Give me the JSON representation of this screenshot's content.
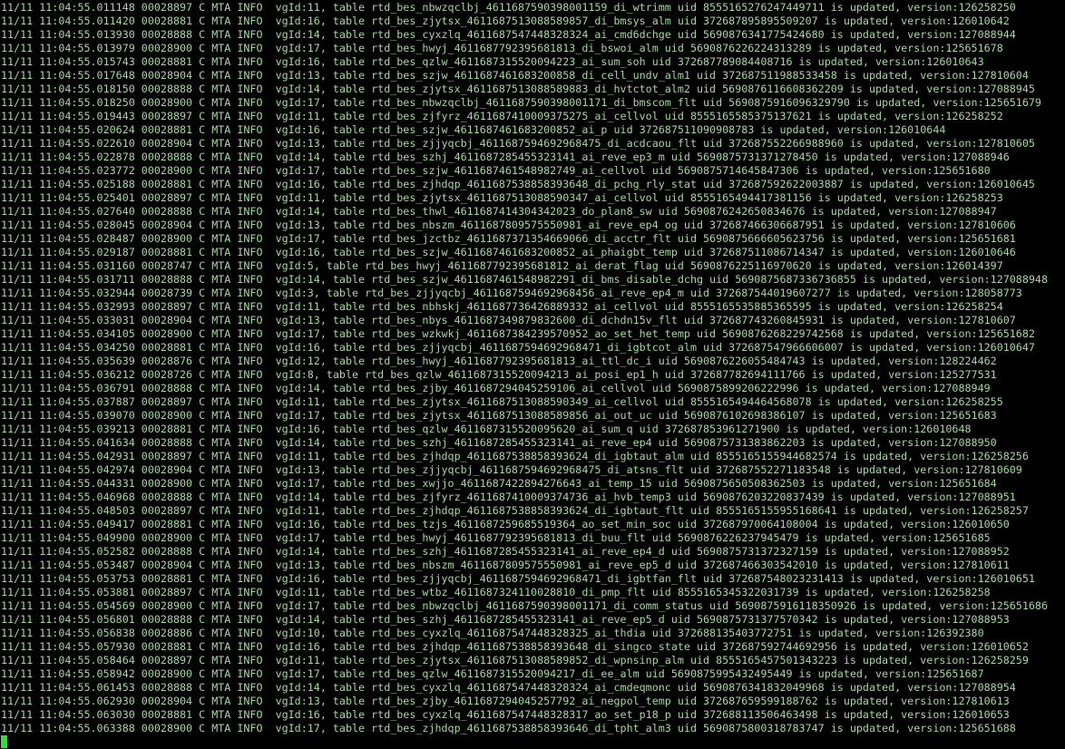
{
  "terminal": {
    "colors": {
      "background": "#000000",
      "foreground": "#a6d8a0",
      "cursor": "#2fe02f"
    },
    "cursor_visible": true,
    "lines": [
      "11/11 11:04:55.011148 00028897 C MTA INFO  vgId:11, table rtd_bes_nbwzqclbj_4611687590398001159_di_wtrimm uid 8555165276247449711 is updated, version:126258250",
      "11/11 11:04:55.011420 00028881 C MTA INFO  vgId:16, table rtd_bes_zjytsx_4611687513088589857_di_bmsys_alm uid 372687895895509207 is updated, version:126010642",
      "11/11 11:04:55.013930 00028888 C MTA INFO  vgId:14, table rtd_bes_cyxzlq_4611687547448328324_ai_cmd6dchge uid 5690876341775424680 is updated, version:127088944",
      "11/11 11:04:55.013979 00028900 C MTA INFO  vgId:17, table rtd_bes_hwyj_4611687792395681813_di_bswoi_alm uid 5690876226224313289 is updated, version:125651678",
      "11/11 11:04:55.015743 00028881 C MTA INFO  vgId:16, table rtd_bes_qzlw_4611687315520094223_ai_sum_soh uid 372687789084408716 is updated, version:126010643",
      "11/11 11:04:55.017648 00028904 C MTA INFO  vgId:13, table rtd_bes_szjw_4611687461683200858_di_cell_undv_alm1 uid 372687511988533458 is updated, version:127810604",
      "11/11 11:04:55.018150 00028888 C MTA INFO  vgId:14, table rtd_bes_zjytsx_4611687513088589883_di_hvtctot_alm2 uid 5690876116608362209 is updated, version:127088945",
      "11/11 11:04:55.018250 00028900 C MTA INFO  vgId:17, table rtd_bes_nbwzqclbj_4611687590398001171_di_bmscom_flt uid 5690875916096329790 is updated, version:125651679",
      "11/11 11:04:55.019443 00028897 C MTA INFO  vgId:11, table rtd_bes_zjfyrz_4611687410009375275_ai_cellvol uid 8555165585375137621 is updated, version:126258252",
      "11/11 11:04:55.020624 00028881 C MTA INFO  vgId:16, table rtd_bes_szjw_4611687461683200852_ai_p uid 372687511090908783 is updated, version:126010644",
      "11/11 11:04:55.022610 00028904 C MTA INFO  vgId:13, table rtd_bes_zjjyqcbj_4611687594692968475_di_acdcaou_flt uid 372687552266988960 is updated, version:127810605",
      "11/11 11:04:55.022878 00028888 C MTA INFO  vgId:14, table rtd_bes_szhj_4611687285455323141_ai_reve_ep3_m uid 5690875731371278450 is updated, version:127088946",
      "11/11 11:04:55.023772 00028900 C MTA INFO  vgId:17, table rtd_bes_szjw_4611687461548982749_ai_cellvol uid 5690875714645847306 is updated, version:125651680",
      "11/11 11:04:55.025188 00028881 C MTA INFO  vgId:16, table rtd_bes_zjhdqp_4611687538858393648_di_pchg_rly_stat uid 372687592622003887 is updated, version:126010645",
      "11/11 11:04:55.025401 00028897 C MTA INFO  vgId:11, table rtd_bes_zjytsx_4611687513088590347_ai_cellvol uid 8555165494417381156 is updated, version:126258253",
      "11/11 11:04:55.027640 00028888 C MTA INFO  vgId:14, table rtd_bes_thwl_4611687414304342023_do_plan8_sw uid 5690876242650834676 is updated, version:127088947",
      "11/11 11:04:55.028045 00028904 C MTA INFO  vgId:13, table rtd_bes_nbszm_4611687809575550981_ai_reve_ep4_og uid 372687466306687951 is updated, version:127810606",
      "11/11 11:04:55.028487 00028900 C MTA INFO  vgId:17, table rtd_bes_jzctbz_4611687371354669066_di_acctr_flt uid 5690875666605623756 is updated, version:125651681",
      "11/11 11:04:55.029187 00028881 C MTA INFO  vgId:16, table rtd_bes_szjw_4611687461683200852_ai_phaigbt_temp uid 372687511086714347 is updated, version:126010646",
      "11/11 11:04:55.031160 00028747 C MTA INFO  vgId:5, table rtd_bes_hwyj_4611687792395681812_ai_derat_flag uid 5690876225116970620 is updated, version:126014397",
      "11/11 11:04:55.031711 00028888 C MTA INFO  vgId:14, table rtd_bes_szjw_4611687461548982291_di_bms_disable_dchg uid 5690875687336736855 is updated, version:127088948",
      "11/11 11:04:55.032944 00028739 C MTA INFO  vgId:3, table rtd_bes_zjjyqcbj_4611687594692968456_ai_reve_ep4_m uid 372687544019607277 is updated, version:128058773",
      "11/11 11:04:55.032993 00028897 C MTA INFO  vgId:11, table rtd_bes_nbhskj_4611687736426889332_ai_cellvol uid 8555165535885365595 is updated, version:126258254",
      "11/11 11:04:55.033031 00028904 C MTA INFO  vgId:13, table rtd_bes_nbys_4611687349879832600_di_dchdn15v_flt uid 372687743260845931 is updated, version:127810607",
      "11/11 11:04:55.034105 00028900 C MTA INFO  vgId:17, table rtd_bes_wzkwkj_4611687384239570952_ao_set_het_temp uid 5690876268229742568 is updated, version:125651682",
      "11/11 11:04:55.034250 00028881 C MTA INFO  vgId:16, table rtd_bes_zjjyqcbj_4611687594692968471_di_igbtcot_alm uid 372687547966606007 is updated, version:126010647",
      "11/11 11:04:55.035639 00028876 C MTA INFO  vgId:12, table rtd_bes_hwyj_4611687792395681813_ai_ttl_dc_i uid 5690876226055484743 is updated, version:128224462",
      "11/11 11:04:55.036212 00028726 C MTA INFO  vgId:8, table rtd_bes_qzlw_4611687315520094213_ai_posi_ep1_h uid 372687782694111766 is updated, version:125277531",
      "11/11 11:04:55.036791 00028888 C MTA INFO  vgId:14, table rtd_bes_zjby_4611687294045259106_ai_cellvol uid 5690875899206222996 is updated, version:127088949",
      "11/11 11:04:55.037887 00028897 C MTA INFO  vgId:11, table rtd_bes_zjytsx_4611687513088590349_ai_cellvol uid 8555165494464568078 is updated, version:126258255",
      "11/11 11:04:55.039070 00028900 C MTA INFO  vgId:17, table rtd_bes_zjytsx_4611687513088589856_ai_out_uc uid 5690876102698386107 is updated, version:125651683",
      "11/11 11:04:55.039213 00028881 C MTA INFO  vgId:16, table rtd_bes_qzlw_4611687315520095620_ai_sum_q uid 372687853961271900 is updated, version:126010648",
      "11/11 11:04:55.041634 00028888 C MTA INFO  vgId:14, table rtd_bes_szhj_4611687285455323141_ai_reve_ep4 uid 5690875731383862203 is updated, version:127088950",
      "11/11 11:04:55.042931 00028897 C MTA INFO  vgId:11, table rtd_bes_zjhdqp_4611687538858393624_di_igbtaut_alm uid 8555165155944682574 is updated, version:126258256",
      "11/11 11:04:55.042974 00028904 C MTA INFO  vgId:13, table rtd_bes_zjjyqcbj_4611687594692968475_di_atsns_flt uid 372687552271183548 is updated, version:127810609",
      "11/11 11:04:55.044331 00028900 C MTA INFO  vgId:17, table rtd_bes_xwjjo_4611687422894276643_ai_temp_15 uid 5690875650508362503 is updated, version:125651684",
      "11/11 11:04:55.046968 00028888 C MTA INFO  vgId:14, table rtd_bes_zjfyrz_4611687410009374736_ai_hvb_temp3 uid 5690876203220837439 is updated, version:127088951",
      "11/11 11:04:55.048503 00028897 C MTA INFO  vgId:11, table rtd_bes_zjhdqp_4611687538858393624_di_igbtaut_flt uid 8555165155955168641 is updated, version:126258257",
      "11/11 11:04:55.049417 00028881 C MTA INFO  vgId:16, table rtd_bes_tzjs_4611687259685519364_ao_set_min_soc uid 372687970064108004 is updated, version:126010650",
      "11/11 11:04:55.049900 00028900 C MTA INFO  vgId:17, table rtd_bes_hwyj_4611687792395681813_di_buu_flt uid 5690876226237945479 is updated, version:125651685",
      "11/11 11:04:55.052582 00028888 C MTA INFO  vgId:14, table rtd_bes_szhj_4611687285455323141_ai_reve_ep4_d uid 5690875731372327159 is updated, version:127088952",
      "11/11 11:04:55.053487 00028904 C MTA INFO  vgId:13, table rtd_bes_nbszm_4611687809575550981_ai_reve_ep5_d uid 372687466303542010 is updated, version:127810611",
      "11/11 11:04:55.053753 00028881 C MTA INFO  vgId:16, table rtd_bes_zjjyqcbj_4611687594692968471_di_igbtfan_flt uid 372687548023231413 is updated, version:126010651",
      "11/11 11:04:55.053881 00028897 C MTA INFO  vgId:11, table rtd_bes_wtbz_4611687324110028810_di_pmp_flt uid 8555165345322031739 is updated, version:126258258",
      "11/11 11:04:55.054569 00028900 C MTA INFO  vgId:17, table rtd_bes_nbwzqclbj_4611687590398001171_di_comm_status uid 5690875916118350926 is updated, version:125651686",
      "11/11 11:04:55.056801 00028888 C MTA INFO  vgId:14, table rtd_bes_szhj_4611687285455323141_ai_reve_ep5_d uid 5690875731377570342 is updated, version:127088953",
      "11/11 11:04:55.056838 00028886 C MTA INFO  vgId:10, table rtd_bes_cyxzlq_4611687547448328325_ai_thdia uid 372688135403772751 is updated, version:126392380",
      "11/11 11:04:55.057930 00028881 C MTA INFO  vgId:16, table rtd_bes_zjhdqp_4611687538858393648_di_singco_state uid 372687592744692956 is updated, version:126010652",
      "11/11 11:04:55.058464 00028897 C MTA INFO  vgId:11, table rtd_bes_zjytsx_4611687513088589852_di_wpnsinp_alm uid 8555165457501343223 is updated, version:126258259",
      "11/11 11:04:55.058942 00028900 C MTA INFO  vgId:17, table rtd_bes_qzlw_4611687315520094217_di_ee_alm uid 5690875995432495449 is updated, version:125651687",
      "11/11 11:04:55.061453 00028888 C MTA INFO  vgId:14, table rtd_bes_cyxzlq_4611687547448328324_ai_cmdeqmonc uid 5690876341832049968 is updated, version:127088954",
      "11/11 11:04:55.062930 00028904 C MTA INFO  vgId:13, table rtd_bes_zjby_4611687294045257792_ai_negpol_temp uid 372687659599188762 is updated, version:127810613",
      "11/11 11:04:55.063030 00028881 C MTA INFO  vgId:16, table rtd_bes_cyxzlq_4611687547448328317_ao_set_p18_p uid 372688113506463498 is updated, version:126010653",
      "11/11 11:04:55.063388 00028900 C MTA INFO  vgId:17, table rtd_bes_zjhdqp_4611687538858393646_di_tpht_alm3 uid 5690875800318783747 is updated, version:125651688"
    ]
  }
}
